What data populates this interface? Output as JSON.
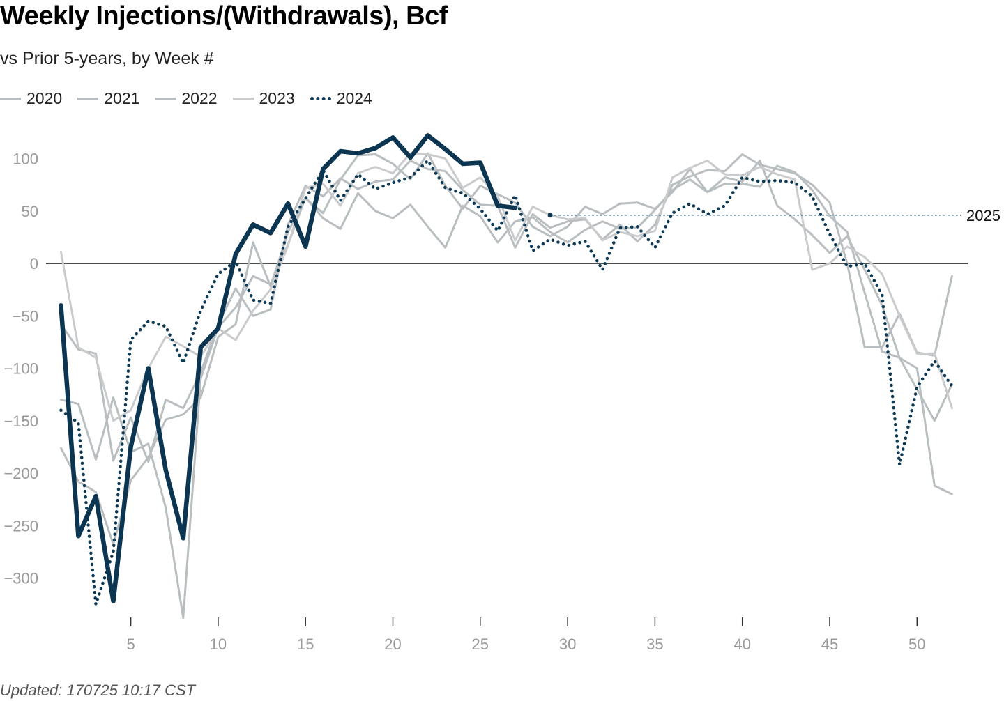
{
  "title": "Weekly Injections/(Withdrawals), Bcf",
  "subtitle": "vs Prior 5-years, by Week #",
  "footer": "Updated: 170725 10:17 CST",
  "legend": [
    {
      "label": "2020",
      "style": "solid",
      "color": "#b9bec1"
    },
    {
      "label": "2021",
      "style": "solid",
      "color": "#b9bec1"
    },
    {
      "label": "2022",
      "style": "solid",
      "color": "#b9bec1"
    },
    {
      "label": "2023",
      "style": "solid",
      "color": "#c9cbcc"
    },
    {
      "label": "2024",
      "style": "dotted",
      "color": "#0e3a55"
    }
  ],
  "chart_data": {
    "type": "line",
    "title": "Weekly Injections/(Withdrawals), Bcf",
    "subtitle": "vs Prior 5-years, by Week #",
    "xlabel": "",
    "ylabel": "",
    "xlim": [
      0,
      53
    ],
    "ylim": [
      -340,
      135
    ],
    "x_ticks": [
      5,
      10,
      15,
      20,
      25,
      30,
      35,
      40,
      45,
      50
    ],
    "y_ticks": [
      100,
      50,
      0,
      -50,
      -100,
      -150,
      -200,
      -250,
      -300
    ],
    "y_tick_labels": [
      "100",
      "50",
      "0",
      "−50",
      "−100",
      "−150",
      "−200",
      "−250",
      "−300"
    ],
    "grid": false,
    "legend_position": "top-left",
    "reference_line": {
      "label": "2025",
      "value": 46,
      "from_week": 29
    },
    "series": [
      {
        "name": "2020",
        "color": "#b9bec1",
        "style": "solid",
        "x": [
          1,
          2,
          3,
          4,
          5,
          6,
          7,
          8,
          9,
          10,
          11,
          12,
          13,
          14,
          15,
          16,
          17,
          18,
          19,
          20,
          21,
          22,
          23,
          24,
          25,
          26,
          27,
          28,
          29,
          30,
          31,
          32,
          33,
          34,
          35,
          36,
          37,
          38,
          39,
          40,
          41,
          42,
          43,
          44,
          45,
          46,
          47,
          48,
          49,
          50,
          51,
          52
        ],
        "values": [
          -130,
          -134,
          -187,
          -128,
          -180,
          -172,
          -233,
          -338,
          -110,
          -61,
          -42,
          -12,
          -20,
          18,
          63,
          43,
          33,
          67,
          50,
          43,
          56,
          35,
          15,
          55,
          45,
          20,
          40,
          44,
          30,
          20,
          32,
          40,
          33,
          34,
          51,
          70,
          80,
          68,
          76,
          76,
          73,
          93,
          87,
          70,
          45,
          30,
          -28,
          -84,
          -90,
          -100,
          -212,
          -220
        ]
      },
      {
        "name": "2021",
        "color": "#b9bec1",
        "style": "solid",
        "x": [
          1,
          2,
          3,
          4,
          5,
          6,
          7,
          8,
          9,
          10,
          11,
          12,
          13,
          14,
          15,
          16,
          17,
          18,
          19,
          20,
          21,
          22,
          23,
          24,
          25,
          26,
          27,
          28,
          29,
          30,
          31,
          32,
          33,
          34,
          35,
          36,
          37,
          38,
          39,
          40,
          41,
          42,
          43,
          44,
          45,
          46,
          47,
          48,
          49,
          50,
          51,
          52
        ],
        "values": [
          -58,
          -82,
          -86,
          -188,
          -147,
          -189,
          -130,
          -138,
          -104,
          -58,
          -24,
          -50,
          -44,
          37,
          74,
          64,
          81,
          71,
          78,
          80,
          98,
          90,
          88,
          70,
          56,
          55,
          15,
          47,
          34,
          40,
          42,
          23,
          37,
          21,
          37,
          75,
          83,
          89,
          88,
          104,
          94,
          90,
          86,
          75,
          58,
          0,
          -80,
          -80,
          -48,
          -85,
          -88,
          -12
        ]
      },
      {
        "name": "2022",
        "color": "#b9bec1",
        "style": "solid",
        "x": [
          1,
          2,
          3,
          4,
          5,
          6,
          7,
          8,
          9,
          10,
          11,
          12,
          13,
          14,
          15,
          16,
          17,
          18,
          19,
          20,
          21,
          22,
          23,
          24,
          25,
          26,
          27,
          28,
          29,
          30,
          31,
          32,
          33,
          34,
          35,
          36,
          37,
          38,
          39,
          40,
          41,
          42,
          43,
          44,
          45,
          46,
          47,
          48,
          49,
          50,
          51,
          52
        ],
        "values": [
          -176,
          -208,
          -218,
          -268,
          -207,
          -185,
          -149,
          -144,
          -128,
          -70,
          -58,
          20,
          -22,
          30,
          62,
          48,
          80,
          103,
          104,
          95,
          80,
          105,
          74,
          52,
          74,
          66,
          58,
          35,
          26,
          35,
          54,
          47,
          57,
          58,
          52,
          68,
          90,
          68,
          82,
          78,
          98,
          55,
          42,
          27,
          10,
          26,
          -6,
          -40,
          -90,
          -120,
          -150,
          -115
        ]
      },
      {
        "name": "2023",
        "color": "#c9cbcc",
        "style": "solid",
        "x": [
          1,
          2,
          3,
          4,
          5,
          6,
          7,
          8,
          9,
          10,
          11,
          12,
          13,
          14,
          15,
          16,
          17,
          18,
          19,
          20,
          21,
          22,
          23,
          24,
          25,
          26,
          27,
          28,
          29,
          30,
          31,
          32,
          33,
          34,
          35,
          36,
          37,
          38,
          39,
          40,
          41,
          42,
          43,
          44,
          45,
          46,
          47,
          48,
          49,
          50,
          51,
          52
        ],
        "values": [
          11,
          -80,
          -90,
          -150,
          -140,
          -100,
          -70,
          -79,
          -89,
          -62,
          -73,
          -45,
          -25,
          17,
          72,
          76,
          55,
          86,
          92,
          86,
          105,
          104,
          100,
          72,
          82,
          64,
          22,
          54,
          46,
          42,
          43,
          22,
          30,
          26,
          31,
          82,
          91,
          98,
          85,
          84,
          92,
          85,
          80,
          -6,
          0,
          16,
          6,
          -10,
          -50,
          -86,
          -86,
          -138
        ]
      },
      {
        "name": "2024",
        "color": "#0e3a55",
        "style": "dotted",
        "x": [
          1,
          2,
          3,
          4,
          5,
          6,
          7,
          8,
          9,
          10,
          11,
          12,
          13,
          14,
          15,
          16,
          17,
          18,
          19,
          20,
          21,
          22,
          23,
          24,
          25,
          26,
          27,
          28,
          29,
          30,
          31,
          32,
          33,
          34,
          35,
          36,
          37,
          38,
          39,
          40,
          41,
          42,
          43,
          44,
          45,
          46,
          47,
          48,
          49,
          50,
          51,
          52
        ],
        "values": [
          -140,
          -152,
          -325,
          -275,
          -73,
          -55,
          -60,
          -95,
          -45,
          -10,
          2,
          -35,
          -38,
          35,
          62,
          89,
          60,
          85,
          71,
          77,
          82,
          98,
          72,
          67,
          52,
          31,
          65,
          12,
          23,
          17,
          21,
          -6,
          34,
          35,
          15,
          48,
          57,
          47,
          55,
          82,
          78,
          79,
          77,
          64,
          28,
          -3,
          0,
          -30,
          -192,
          -118,
          -93,
          -117
        ]
      },
      {
        "name": "",
        "color": "#0b3550",
        "style": "solid",
        "x": [
          1,
          2,
          3,
          4,
          5,
          6,
          7,
          8,
          9,
          10,
          11,
          12,
          13,
          14,
          15,
          16,
          17,
          18,
          19,
          20,
          21,
          22,
          23,
          24,
          25,
          26,
          27
        ],
        "values": [
          -40,
          -260,
          -222,
          -322,
          -175,
          -100,
          -197,
          -262,
          -80,
          -62,
          9,
          37,
          29,
          57,
          16,
          90,
          107,
          105,
          110,
          120,
          101,
          122,
          109,
          95,
          96,
          55,
          53
        ]
      }
    ]
  }
}
